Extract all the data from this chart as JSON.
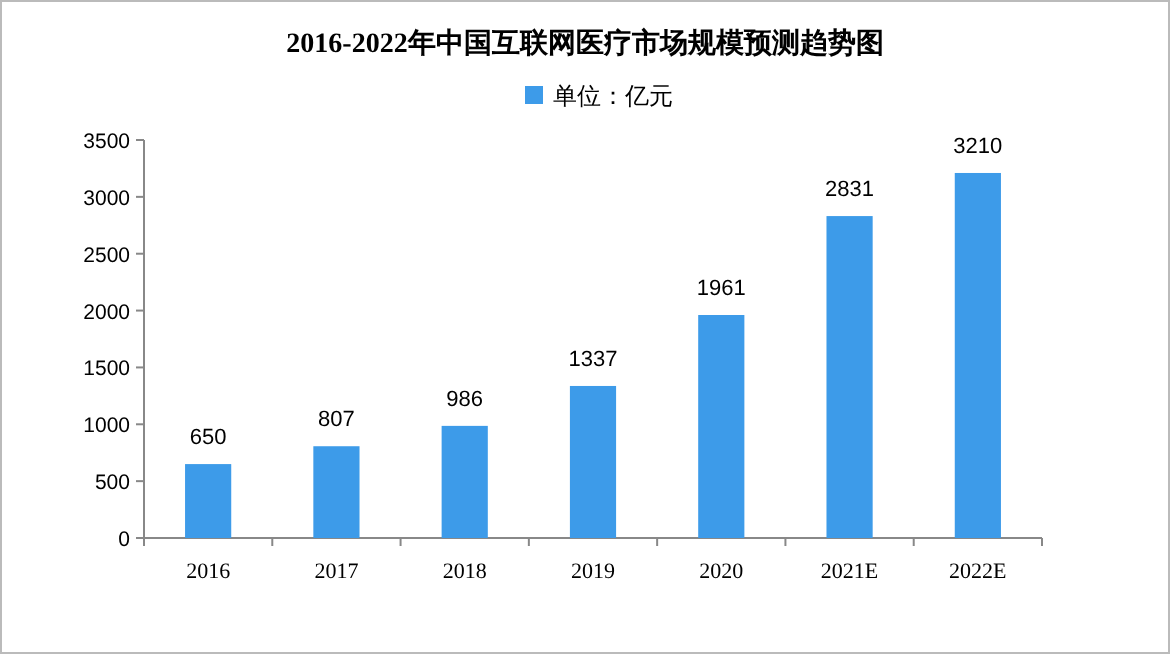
{
  "chart_data": {
    "type": "bar",
    "title": "2016-2022年中国互联网医疗市场规模预测趋势图",
    "categories": [
      "2016",
      "2017",
      "2018",
      "2019",
      "2020",
      "2021E",
      "2022E"
    ],
    "series": [
      {
        "name": "单位：亿元",
        "color": "#3d9be9",
        "values": [
          650,
          807,
          986,
          1337,
          1961,
          2831,
          3210
        ]
      }
    ],
    "ylim": [
      0,
      3500
    ],
    "yticks": [
      0,
      500,
      1000,
      1500,
      2000,
      2500,
      3000,
      3500
    ],
    "data_labels": true,
    "legend": "top",
    "grid": false
  }
}
